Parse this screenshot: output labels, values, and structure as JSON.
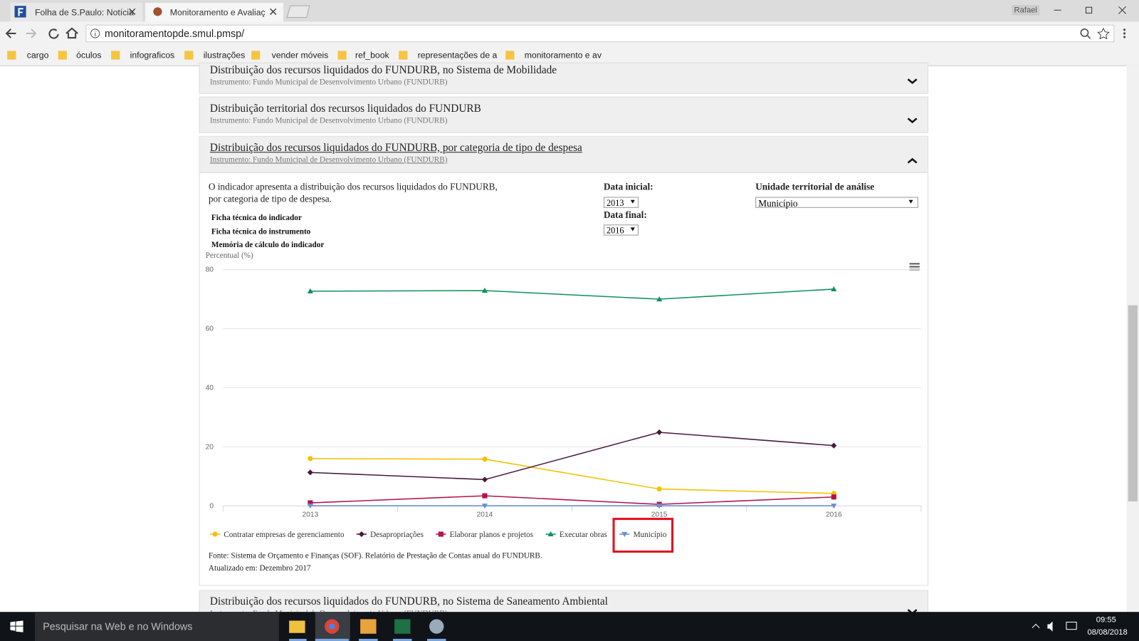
{
  "browser": {
    "tabs": [
      "Folha de S.Paulo: Notícia",
      "Monitoramento e Avaliaç"
    ],
    "user": "Rafael",
    "url": "monitoramentopde.smul.pmsp/",
    "bookmarks": [
      "cargo",
      "óculos",
      "infograficos",
      "ilustrações",
      "vender móveis",
      "ref_book",
      "representações de a",
      "monitoramento e av"
    ]
  },
  "page": {
    "panels": [
      {
        "title": "Distribuição dos recursos liquidados do FUNDURB, no Sistema de Mobilidade",
        "subtitle": "Instrumento: Fundo Municipal de Desenvolvimento Urbano (FUNDURB)"
      },
      {
        "title": "Distribuição territorial dos recursos liquidados do FUNDURB",
        "subtitle": "Instrumento: Fundo Municipal de Desenvolvimento Urbano (FUNDURB)"
      },
      {
        "title": "Distribuição dos recursos liquidados do FUNDURB, por categoria de tipo de despesa",
        "subtitle": "Instrumento: Fundo Municipal de Desenvolvimento Urbano (FUNDURB)"
      },
      {
        "title": "Distribuição dos recursos liquidados do FUNDURB, no Sistema de Saneamento Ambiental",
        "subtitle": "Instrumento: Fundo Municipal de Desenvolvimento Urbano (FUNDURB)"
      }
    ],
    "description": [
      "O indicador apresenta a distribuição dos recursos liquidados do FUNDURB,",
      "por categoria de tipo de despesa."
    ],
    "links": [
      "Ficha técnica do indicador",
      "Ficha técnica do instrumento",
      "Memória de cálculo do indicador"
    ],
    "controls": {
      "start_label": "Data inicial:",
      "start_value": "2013",
      "end_label": "Data final:",
      "end_value": "2016",
      "unit_label": "Unidade territorial de análise",
      "unit_value": "Município"
    },
    "source": "Fonte: Sistema de Orçamento e Finanças (SOF). Relatório de Prestação de Contas anual do FUNDURB.",
    "updated": "Atualizado em: Dezembro 2017"
  },
  "chart_data": {
    "type": "line",
    "y_label": "Percentual (%)",
    "categories": [
      "2013",
      "2014",
      "2015",
      "2016"
    ],
    "series": [
      {
        "name": "Contratar empresas de gerenciamento",
        "color": "#f2c200",
        "marker": "circle",
        "values": [
          16.0,
          15.8,
          5.7,
          4.2
        ]
      },
      {
        "name": "Desapropriações",
        "color": "#4a1942",
        "marker": "diamond",
        "values": [
          11.3,
          8.9,
          24.9,
          20.4
        ]
      },
      {
        "name": "Elaborar planos e projetos",
        "color": "#b3134b",
        "marker": "square",
        "values": [
          1.0,
          3.4,
          0.5,
          3.0
        ]
      },
      {
        "name": "Executar obras",
        "color": "#10915a",
        "marker": "triangle",
        "values": [
          72.7,
          72.9,
          70.0,
          73.4
        ]
      },
      {
        "name": "Município",
        "color": "#6a8fd4",
        "marker": "triangle-down",
        "values": [
          0,
          0,
          0,
          0
        ]
      }
    ],
    "ylim": [
      0,
      80
    ],
    "yticks": [
      0,
      20,
      40,
      60,
      80
    ],
    "grid": true,
    "legend": "bottom",
    "highlight_series": 4
  },
  "taskbar": {
    "search": "Pesquisar na Web e no Windows",
    "time": "09:55",
    "date": "08/08/2018"
  }
}
